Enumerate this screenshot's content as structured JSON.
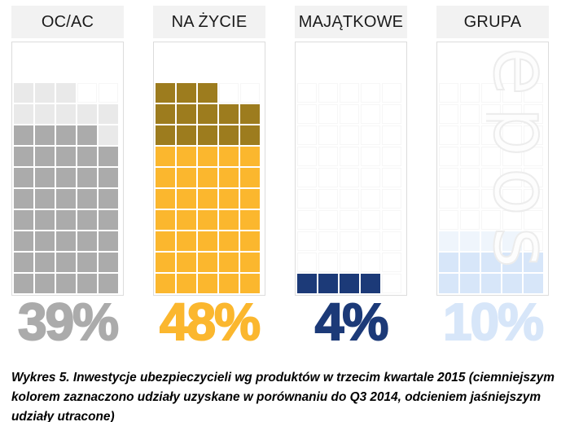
{
  "chart_data": {
    "type": "waffle",
    "note": "pictogram grid, 1 square = 1 percentage point, squares fill bottom-up left-to-right; darker shade = share gained vs Q3 2014, lighter shade = share lost",
    "grid": {
      "rows": 10,
      "cols": 5
    },
    "categories": [
      "OC/AC",
      "NA ŻYCIE",
      "MAJĄTKOWE",
      "GRUPA"
    ],
    "values": [
      39,
      48,
      4,
      10
    ],
    "series_detail": [
      {
        "label": "OC/AC",
        "value_label": "39%",
        "current_share_pct": 39,
        "retained_cells": 39,
        "change_cells": 9,
        "change_type": "lost",
        "q3_2014_share_pct": 48,
        "base_color": "#ababab",
        "change_color": "#e9e9e9",
        "label_color": "#ababab"
      },
      {
        "label": "NA ŻYCIE",
        "value_label": "48%",
        "current_share_pct": 48,
        "retained_cells": 35,
        "change_cells": 13,
        "change_type": "gained",
        "q3_2014_share_pct": 35,
        "base_color": "#fbb72e",
        "change_color": "#9d7c1e",
        "label_color": "#fbb72e"
      },
      {
        "label": "MAJĄTKOWE",
        "value_label": "4%",
        "current_share_pct": 4,
        "retained_cells": 0,
        "change_cells": 4,
        "change_type": "gained",
        "q3_2014_share_pct": 0,
        "base_color": "#1c3a78",
        "change_color": "#1c3a78",
        "label_color": "#1c3a78"
      },
      {
        "label": "GRUPA",
        "value_label": "10%",
        "current_share_pct": 10,
        "retained_cells": 10,
        "change_cells": 4,
        "change_type": "lost",
        "base_color": "#d7e6f9",
        "change_color": "#eff5fc",
        "q3_2014_share_pct": 14,
        "label_color": "#d7e6f9"
      }
    ]
  },
  "caption": "Wykres 5. Inwestycje ubezpieczycieli wg produktów w trzecim kwartale 2015 (ciemniejszym kolorem zaznaczono udziały uzyskane w porównaniu do Q3 2014, odcieniem jaśniejszym udziały utracone)",
  "watermark": {
    "text": "epos"
  },
  "colors": {
    "header_bg": "#f2f2f2",
    "box_border": "#dcdcdc",
    "empty_cell_border": "#f6f6f6",
    "caption_text": "#000000"
  }
}
